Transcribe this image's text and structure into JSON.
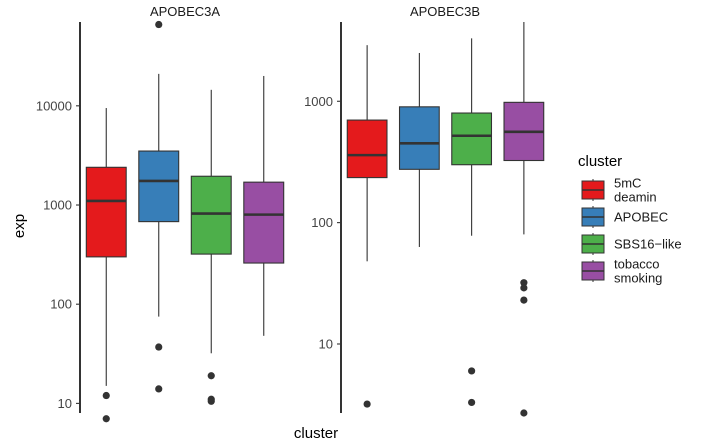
{
  "chart_data": {
    "type": "box",
    "xlabel": "cluster",
    "ylabel": "exp",
    "yscale": "log10",
    "grid": false,
    "legend_position": "right",
    "legend": {
      "title": "cluster",
      "entries": [
        {
          "label_lines": [
            "5mC",
            "deamin"
          ],
          "color": "#E41A1C"
        },
        {
          "label_lines": [
            "APOBEC"
          ],
          "color": "#377EB8"
        },
        {
          "label_lines": [
            "SBS16−like"
          ],
          "color": "#4DAF4A"
        },
        {
          "label_lines": [
            "tobacco",
            "smoking"
          ],
          "color": "#984EA3"
        }
      ]
    },
    "panels": [
      {
        "title": "APOBEC3A",
        "ylim": [
          8,
          70000
        ],
        "y_ticks": [
          10,
          100,
          1000,
          10000
        ],
        "y_tick_labels": [
          "10",
          "100",
          "1000",
          "10000"
        ],
        "boxes": [
          {
            "cluster": "5mC deamin",
            "lower_whisker": 15,
            "q1": 300,
            "median": 1100,
            "q3": 2400,
            "upper_whisker": 9500,
            "outliers": [
              12,
              7
            ]
          },
          {
            "cluster": "APOBEC",
            "lower_whisker": 75,
            "q1": 680,
            "median": 1750,
            "q3": 3500,
            "upper_whisker": 21000,
            "outliers": [
              66000,
              37,
              14
            ]
          },
          {
            "cluster": "SBS16-like",
            "lower_whisker": 32,
            "q1": 320,
            "median": 820,
            "q3": 1950,
            "upper_whisker": 14500,
            "outliers": [
              19,
              11,
              10.5
            ]
          },
          {
            "cluster": "tobacco smoking",
            "lower_whisker": 48,
            "q1": 260,
            "median": 800,
            "q3": 1700,
            "upper_whisker": 20000,
            "outliers": []
          }
        ]
      },
      {
        "title": "APOBEC3B",
        "ylim": [
          2.7,
          4500
        ],
        "y_ticks": [
          10,
          100,
          1000
        ],
        "y_tick_labels": [
          "10",
          "100",
          "1000"
        ],
        "boxes": [
          {
            "cluster": "5mC deamin",
            "lower_whisker": 48,
            "q1": 235,
            "median": 360,
            "q3": 700,
            "upper_whisker": 2900,
            "outliers": [
              3.2
            ]
          },
          {
            "cluster": "APOBEC",
            "lower_whisker": 63,
            "q1": 275,
            "median": 450,
            "q3": 900,
            "upper_whisker": 2500,
            "outliers": []
          },
          {
            "cluster": "SBS16-like",
            "lower_whisker": 78,
            "q1": 300,
            "median": 520,
            "q3": 800,
            "upper_whisker": 3300,
            "outliers": [
              6,
              3.3
            ]
          },
          {
            "cluster": "tobacco smoking",
            "lower_whisker": 80,
            "q1": 325,
            "median": 560,
            "q3": 980,
            "upper_whisker": 4500,
            "outliers": [
              32,
              29,
              23,
              2.7
            ]
          }
        ]
      }
    ]
  }
}
